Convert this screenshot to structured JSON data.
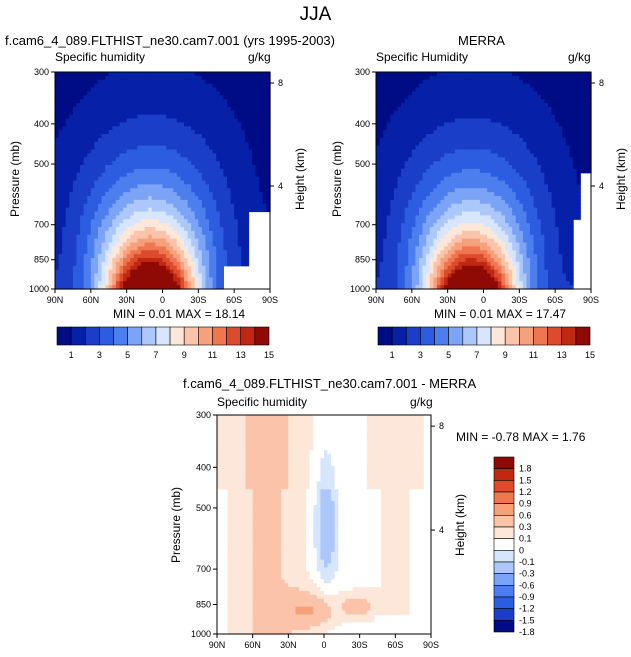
{
  "title": "JJA",
  "panels": [
    {
      "title": "f.cam6_4_089.FLTHIST_ne30.cam7.001 (yrs 1995-2003)",
      "variable": "Specific humidity",
      "units": "g/kg",
      "min_max": "MIN =  0.01   MAX =  18.14"
    },
    {
      "title": "MERRA",
      "variable": "Specific Humidity",
      "units": "g/kg",
      "min_max": "MIN =  0.01   MAX =  17.47"
    },
    {
      "title": "f.cam6_4_089.FLTHIST_ne30.cam7.001 - MERRA",
      "variable": "Specific humidity",
      "units": "g/kg",
      "min_max": "MIN = -0.78   MAX =   1.76"
    }
  ],
  "axes": {
    "ylabel": "Pressure (mb)",
    "ylabel_right": "Height (km)",
    "pressure_ticks": [
      "300",
      "400",
      "500",
      "700",
      "850",
      "1000"
    ],
    "height_ticks": [
      "8",
      "4"
    ],
    "lat_ticks": [
      "90N",
      "60N",
      "30N",
      "0",
      "30S",
      "60S",
      "90S"
    ]
  },
  "colorbars": {
    "absolute": {
      "labels": [
        "1",
        "3",
        "5",
        "7",
        "9",
        "11",
        "13",
        "15"
      ],
      "colors": [
        "#000c85",
        "#0620a8",
        "#1a3ec8",
        "#2c5ce0",
        "#4c7eee",
        "#7ca4f6",
        "#acc8fb",
        "#d8e6fd",
        "#fde7d9",
        "#fbc4aa",
        "#f7a07c",
        "#ef7650",
        "#dc4b2c",
        "#c02812",
        "#8f0a05"
      ]
    },
    "difference": {
      "labels": [
        "1.8",
        "1.5",
        "1.2",
        "0.9",
        "0.6",
        "0.3",
        "0.1",
        "0",
        "-0.1",
        "-0.3",
        "-0.6",
        "-0.9",
        "-1.2",
        "-1.5",
        "-1.8"
      ],
      "colors": [
        "#8f0a05",
        "#c02812",
        "#dc4b2c",
        "#ef7650",
        "#f7a07c",
        "#fbc4aa",
        "#fde7d9",
        "#ffffff",
        "#d8e6fd",
        "#acc8fb",
        "#7ca4f6",
        "#4c7eee",
        "#2c5ce0",
        "#1a3ec8",
        "#000c85"
      ]
    }
  },
  "chart_data": [
    {
      "type": "heatmap",
      "title": "f.cam6_4_089.FLTHIST_ne30.cam7.001 (yrs 1995-2003)",
      "variable": "Specific humidity",
      "units": "g/kg",
      "x": [
        "90N",
        "60N",
        "30N",
        "0",
        "30S",
        "60S",
        "90S"
      ],
      "y": [
        300,
        400,
        500,
        700,
        850,
        1000
      ],
      "xlabel": "",
      "ylabel": "Pressure (mb)",
      "levels": [
        1,
        2,
        3,
        4,
        5,
        6,
        7,
        8,
        9,
        10,
        11,
        12,
        13,
        14,
        15
      ],
      "min": 0.01,
      "max": 18.14,
      "peak_latitude": "~10N",
      "peak_pressure": 1000
    },
    {
      "type": "heatmap",
      "title": "MERRA",
      "variable": "Specific Humidity",
      "units": "g/kg",
      "x": [
        "90N",
        "60N",
        "30N",
        "0",
        "30S",
        "60S",
        "90S"
      ],
      "y": [
        300,
        400,
        500,
        700,
        850,
        1000
      ],
      "xlabel": "",
      "ylabel": "Pressure (mb)",
      "levels": [
        1,
        2,
        3,
        4,
        5,
        6,
        7,
        8,
        9,
        10,
        11,
        12,
        13,
        14,
        15
      ],
      "min": 0.01,
      "max": 17.47,
      "peak_latitude": "~10N",
      "peak_pressure": 1000
    },
    {
      "type": "heatmap",
      "title": "f.cam6_4_089.FLTHIST_ne30.cam7.001 - MERRA",
      "variable": "Specific humidity",
      "units": "g/kg",
      "x": [
        "90N",
        "60N",
        "30N",
        "0",
        "30S",
        "60S",
        "90S"
      ],
      "y": [
        300,
        400,
        500,
        700,
        850,
        1000
      ],
      "xlabel": "",
      "ylabel": "Pressure (mb)",
      "levels": [
        -1.8,
        -1.5,
        -1.2,
        -0.9,
        -0.6,
        -0.3,
        -0.1,
        0,
        0.1,
        0.3,
        0.6,
        0.9,
        1.2,
        1.5,
        1.8
      ],
      "min": -0.78,
      "max": 1.76
    }
  ]
}
